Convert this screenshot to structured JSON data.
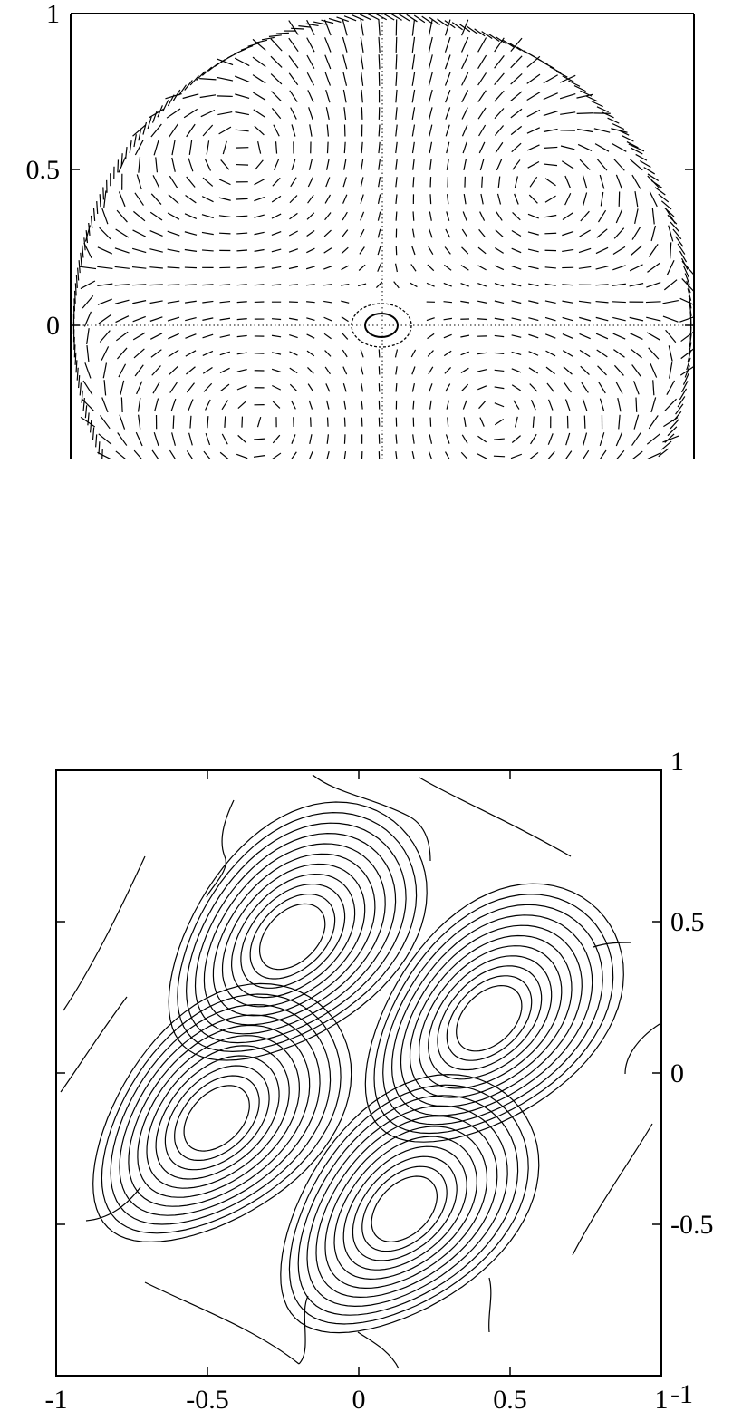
{
  "chart_data": [
    {
      "type": "vector-field",
      "panel": "top",
      "title": "",
      "xlabel": "",
      "ylabel": "",
      "xlim": [
        -1,
        1
      ],
      "ylim": [
        -0.42,
        1.0
      ],
      "domain": "unit disk (cropped at y = -0.42)",
      "grid": false,
      "reference_lines": [
        "x = 0.00 (dotted)",
        "y = 0 (dotted)"
      ],
      "y_ticks": [
        {
          "value": 1,
          "label": "1"
        },
        {
          "value": 0.5,
          "label": "0.5"
        },
        {
          "value": 0,
          "label": "0"
        }
      ],
      "features": {
        "vortices_upper": [
          [
            -0.43,
            0.55
          ],
          [
            0.5,
            0.43
          ]
        ],
        "vortices_lower": [
          [
            -0.38,
            -0.3
          ],
          [
            0.35,
            -0.28
          ]
        ],
        "small_loop_center": [
          0.03,
          0
        ]
      },
      "line_color": "#000000"
    },
    {
      "type": "contour",
      "panel": "bottom",
      "title": "",
      "xlabel": "",
      "ylabel": "",
      "xlim": [
        -1,
        1
      ],
      "ylim": [
        -1,
        1
      ],
      "grid": false,
      "x_ticks": [
        {
          "value": -1,
          "label": "-1"
        },
        {
          "value": -0.5,
          "label": "-0.5"
        },
        {
          "value": 0,
          "label": "0"
        },
        {
          "value": 0.5,
          "label": "0.5"
        },
        {
          "value": 1,
          "label": "1"
        }
      ],
      "y_ticks": [
        {
          "value": 1,
          "label": "1"
        },
        {
          "value": 0.5,
          "label": "0.5"
        },
        {
          "value": 0,
          "label": "0"
        },
        {
          "value": -0.5,
          "label": "-0.5"
        },
        {
          "value": -1,
          "label": "-1"
        }
      ],
      "lobes": [
        {
          "center": [
            -0.22,
            0.45
          ],
          "sign": 1
        },
        {
          "center": [
            0.43,
            0.18
          ],
          "sign": -1
        },
        {
          "center": [
            -0.47,
            -0.15
          ],
          "sign": -1
        },
        {
          "center": [
            0.15,
            -0.45
          ],
          "sign": 1
        }
      ],
      "contour_levels_per_lobe": 11,
      "line_color": "#000000"
    }
  ]
}
